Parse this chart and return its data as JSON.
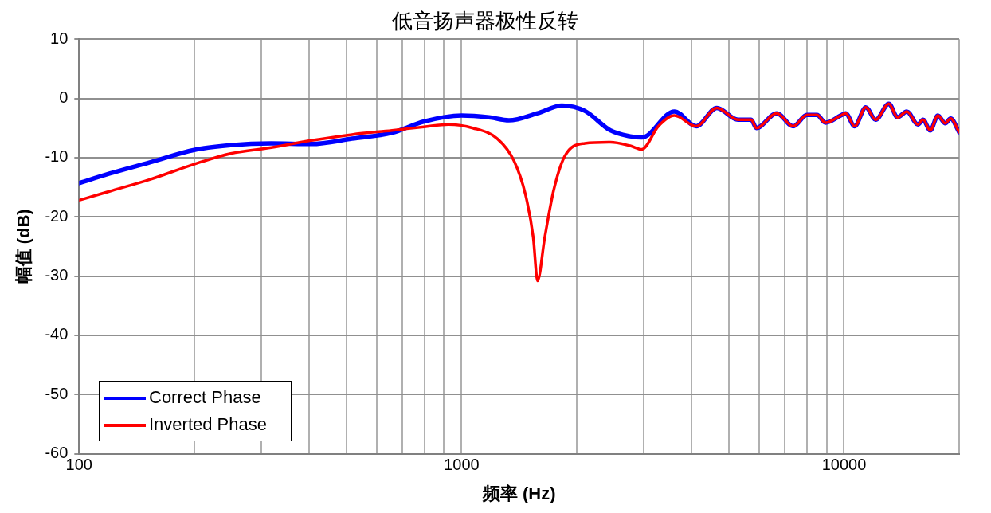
{
  "chart_data": {
    "type": "line",
    "title": "低音扬声器极性反转",
    "xlabel": "频率 (Hz)",
    "ylabel": "幅值 (dB)",
    "log": "x",
    "grid": true,
    "legend": "bottom left",
    "marker": "none",
    "line_style": "solid",
    "xlim": [
      100,
      20000
    ],
    "ylim": [
      -60,
      10
    ],
    "xticks": [
      100,
      {
        "value": 200,
        "label": null
      },
      {
        "value": 300,
        "label": null
      },
      {
        "value": 400,
        "label": null
      },
      {
        "value": 500,
        "label": null
      },
      {
        "value": 600,
        "label": null
      },
      {
        "value": 700,
        "label": null
      },
      {
        "value": 800,
        "label": null
      },
      {
        "value": 900,
        "label": null
      },
      1000,
      {
        "value": 2000,
        "label": null
      },
      {
        "value": 3000,
        "label": null
      },
      {
        "value": 4000,
        "label": null
      },
      {
        "value": 5000,
        "label": null
      },
      {
        "value": 6000,
        "label": null
      },
      {
        "value": 7000,
        "label": null
      },
      {
        "value": 8000,
        "label": null
      },
      {
        "value": 9000,
        "label": null
      },
      10000,
      {
        "value": 20000,
        "label": null
      }
    ],
    "yticks": [
      -60,
      -50,
      -40,
      -30,
      -20,
      -10,
      0,
      10
    ],
    "series": [
      {
        "name": "Correct Phase",
        "color": "#0000ff",
        "x": [
          100,
          120,
          153,
          200,
          249,
          318,
          405,
          517,
          658,
          798,
          1000,
          1180,
          1330,
          1580,
          1830,
          2100,
          2450,
          2760,
          2960,
          3600,
          4110,
          4650,
          5280,
          5720,
          5900,
          6670,
          7360,
          8000,
          8500,
          8940,
          9800,
          10100,
          10660,
          11400,
          12100,
          13100,
          13800,
          14600,
          15600,
          16100,
          16800,
          17600,
          18400,
          19000,
          20000
        ],
        "values": [
          -14.3,
          -12.7,
          -10.8,
          -8.7,
          -7.9,
          -7.6,
          -7.7,
          -6.8,
          -5.8,
          -3.9,
          -2.9,
          -3.2,
          -3.7,
          -2.5,
          -1.2,
          -2.1,
          -5.4,
          -6.4,
          -6.6,
          -2.2,
          -4.7,
          -1.6,
          -3.6,
          -3.6,
          -5.0,
          -2.5,
          -4.7,
          -2.8,
          -2.8,
          -4.1,
          -2.9,
          -2.5,
          -4.7,
          -1.5,
          -3.6,
          -0.9,
          -3.2,
          -2.2,
          -4.4,
          -3.6,
          -5.4,
          -2.9,
          -4.2,
          -3.4,
          -5.7
        ]
      },
      {
        "name": "Inverted Phase",
        "color": "#ff0000",
        "x": [
          100,
          120,
          153,
          200,
          249,
          318,
          405,
          517,
          658,
          798,
          925,
          1070,
          1240,
          1370,
          1470,
          1540,
          1580,
          1650,
          1740,
          1860,
          2100,
          2450,
          2760,
          2960,
          3270,
          3600,
          4110,
          4650,
          5280,
          5720,
          5900,
          6670,
          7360,
          8000,
          8500,
          8940,
          9800,
          10100,
          10660,
          11400,
          12100,
          13100,
          13800,
          14600,
          15600,
          16100,
          16800,
          17600,
          18400,
          19000,
          20000
        ],
        "values": [
          -17.2,
          -15.7,
          -13.7,
          -11.1,
          -9.3,
          -8.3,
          -7.1,
          -6.1,
          -5.4,
          -4.8,
          -4.4,
          -5.0,
          -6.8,
          -10.5,
          -16.3,
          -23.5,
          -30.8,
          -23.5,
          -15.6,
          -9.8,
          -7.6,
          -7.4,
          -8.0,
          -8.6,
          -4.7,
          -2.9,
          -4.7,
          -1.6,
          -3.6,
          -3.6,
          -5.0,
          -2.5,
          -4.7,
          -2.8,
          -2.8,
          -4.1,
          -2.9,
          -2.5,
          -4.7,
          -1.5,
          -3.6,
          -0.9,
          -3.2,
          -2.2,
          -4.4,
          -3.6,
          -5.4,
          -2.9,
          -4.2,
          -3.4,
          -5.7
        ]
      }
    ]
  }
}
